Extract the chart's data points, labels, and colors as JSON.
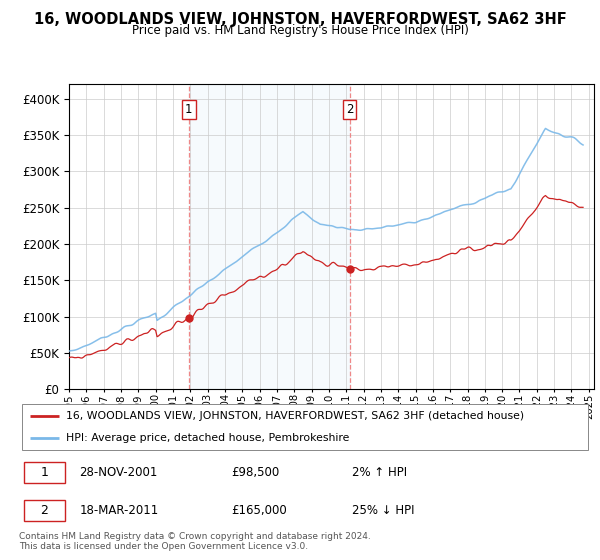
{
  "title": "16, WOODLANDS VIEW, JOHNSTON, HAVERFORDWEST, SA62 3HF",
  "subtitle": "Price paid vs. HM Land Registry's House Price Index (HPI)",
  "legend_line1": "16, WOODLANDS VIEW, JOHNSTON, HAVERFORDWEST, SA62 3HF (detached house)",
  "legend_line2": "HPI: Average price, detached house, Pembrokeshire",
  "annotation1_date": "28-NOV-2001",
  "annotation1_price": "£98,500",
  "annotation1_hpi": "2% ↑ HPI",
  "annotation2_date": "18-MAR-2011",
  "annotation2_price": "£165,000",
  "annotation2_hpi": "25% ↓ HPI",
  "footer": "Contains HM Land Registry data © Crown copyright and database right 2024.\nThis data is licensed under the Open Government Licence v3.0.",
  "sale1_year": 2001.92,
  "sale1_price": 98500,
  "sale2_year": 2011.2,
  "sale2_price": 165000,
  "hpi_color": "#7ab8e8",
  "price_color": "#cc2222",
  "sale_dot_color": "#cc2222",
  "vline_color": "#ee8888",
  "shade_color": "#d0e8f8",
  "ylim": [
    0,
    420000
  ],
  "xlim_start": 1995.0,
  "xlim_end": 2025.3
}
